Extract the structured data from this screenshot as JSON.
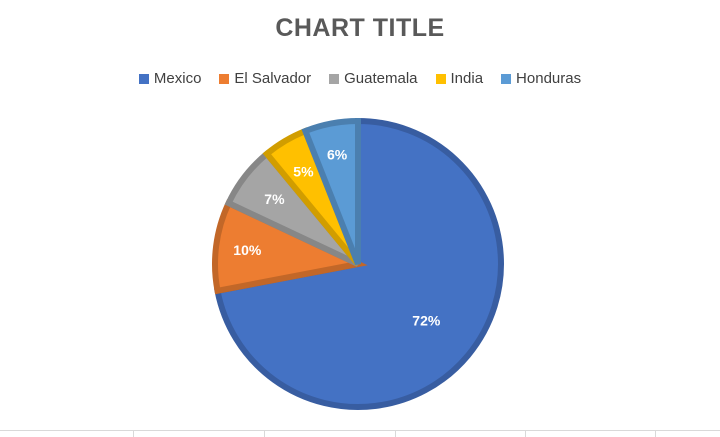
{
  "chart_data": {
    "type": "pie",
    "title": "CHART TITLE",
    "legend_position": "top",
    "slices": [
      {
        "label": "Mexico",
        "value": 72,
        "display": "72%",
        "color": "#4472C4"
      },
      {
        "label": "El Salvador",
        "value": 10,
        "display": "10%",
        "color": "#ED7D31"
      },
      {
        "label": "Guatemala",
        "value": 7,
        "display": "7%",
        "color": "#A5A5A5"
      },
      {
        "label": "India",
        "value": 5,
        "display": "5%",
        "color": "#FFC000"
      },
      {
        "label": "Honduras",
        "value": 6,
        "display": "6%",
        "color": "#5B9BD5"
      }
    ]
  }
}
